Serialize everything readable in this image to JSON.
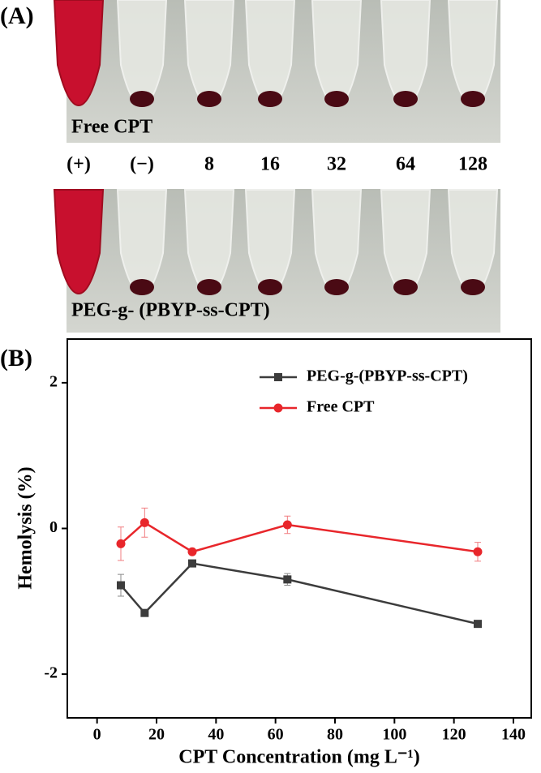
{
  "panel_a": {
    "label": "(A)",
    "top_caption": "Free CPT",
    "lanes": [
      "(+)",
      "(−)",
      "8",
      "16",
      "32",
      "64",
      "128"
    ],
    "bottom_caption": "PEG-g- (PBYP-ss-CPT)"
  },
  "chart_data": {
    "type": "line",
    "panel_label": "(B)",
    "x_label": "CPT Concentration (mg L⁻¹)",
    "y_label": "Hemolysis (%)",
    "x": [
      8,
      16,
      32,
      64,
      128
    ],
    "series": [
      {
        "name": "PEG-g-(PBYP-ss-CPT)",
        "color": "#3c3c3c",
        "marker": "square",
        "values": [
          -0.78,
          -1.16,
          -0.48,
          -0.7,
          -1.31
        ],
        "errors": [
          0.15,
          0.03,
          0.03,
          0.08,
          0.03
        ]
      },
      {
        "name": "Free CPT",
        "color": "#e8262b",
        "marker": "circle",
        "values": [
          -0.21,
          0.08,
          -0.32,
          0.05,
          -0.32
        ],
        "errors": [
          0.23,
          0.2,
          0.03,
          0.12,
          0.13
        ]
      }
    ],
    "xlim": [
      -10,
      146
    ],
    "ylim": [
      -2.6,
      2.6
    ],
    "xticks": [
      0,
      20,
      40,
      60,
      80,
      100,
      120,
      140
    ],
    "yticks": [
      -2,
      0,
      2
    ],
    "legend": "upper right"
  }
}
